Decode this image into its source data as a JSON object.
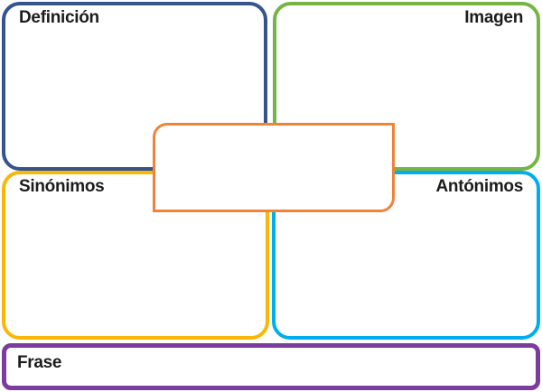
{
  "page": {
    "background": "#ffffff",
    "text_color": "#1c1c1c"
  },
  "organizer": {
    "definicion": {
      "label": "Definición",
      "border_color": "#35548b"
    },
    "imagen": {
      "label": "Imagen",
      "border_color": "#76b543"
    },
    "sinonimos": {
      "label": "Sinónimos",
      "border_color": "#fcb605"
    },
    "antonimos": {
      "label": "Antónimos",
      "border_color": "#00aeef"
    },
    "center_term": {
      "label": "",
      "border_color": "#ef8338"
    },
    "frase": {
      "label": "Frase",
      "border_color": "#7a3d9e"
    }
  }
}
